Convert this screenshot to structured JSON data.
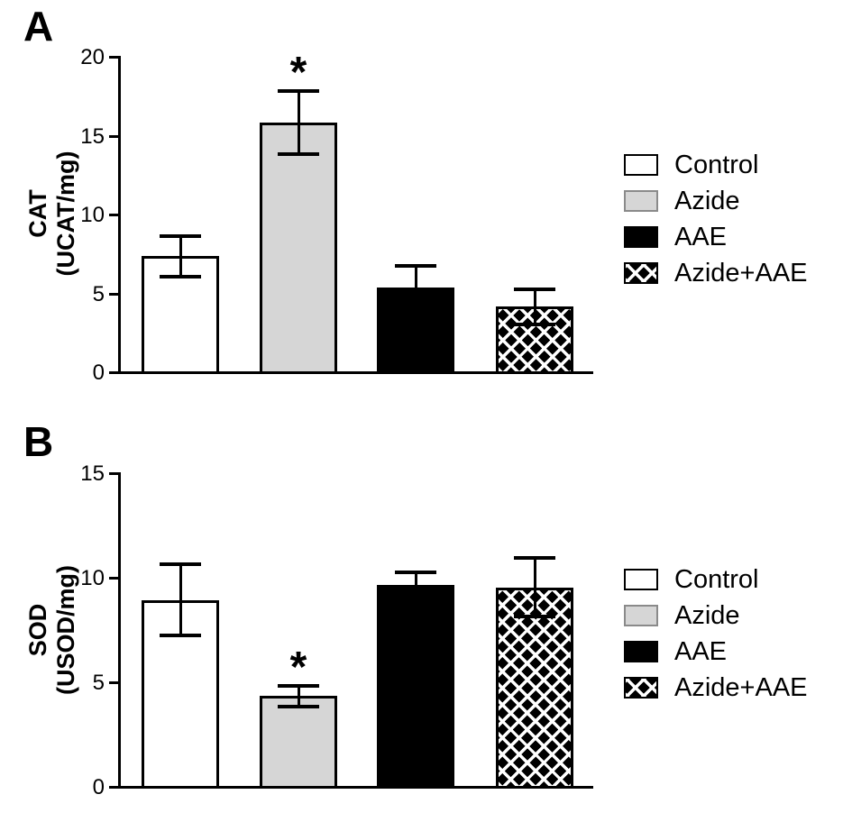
{
  "chart_data": {
    "type": "bar",
    "grid": false,
    "sig_marker": "*",
    "legend": {
      "position": "right",
      "items": [
        {
          "label": "Control",
          "fill": "#ffffff",
          "pattern": "solid"
        },
        {
          "label": "Azide",
          "fill": "#d6d6d6",
          "pattern": "solid"
        },
        {
          "label": "AAE",
          "fill": "#000000",
          "pattern": "solid"
        },
        {
          "label": "Azide+AAE",
          "fill": "#000000",
          "pattern": "diamond-crosshatch"
        }
      ]
    },
    "panels": [
      {
        "panel_label": "A",
        "ylabel": [
          "CAT",
          "(UCAT/mg)"
        ],
        "ylim": [
          0,
          20
        ],
        "yticks": [
          20,
          15,
          10,
          5,
          0
        ],
        "categories": [
          "Control",
          "Azide",
          "AAE",
          "Azide+AAE"
        ],
        "values": [
          7.3,
          15.8,
          5.3,
          4.1
        ],
        "errors": [
          1.3,
          2.0,
          1.4,
          1.1
        ],
        "significance": [
          "",
          "*",
          "",
          ""
        ]
      },
      {
        "panel_label": "B",
        "ylabel": [
          "SOD",
          "(USOD/mg)"
        ],
        "ylim": [
          0,
          15
        ],
        "yticks": [
          15,
          10,
          5,
          0
        ],
        "categories": [
          "Control",
          "Azide",
          "AAE",
          "Azide+AAE"
        ],
        "values": [
          8.9,
          4.3,
          9.6,
          9.5
        ],
        "errors": [
          1.7,
          0.5,
          0.6,
          1.4
        ],
        "significance": [
          "",
          "*",
          "",
          ""
        ]
      }
    ]
  }
}
